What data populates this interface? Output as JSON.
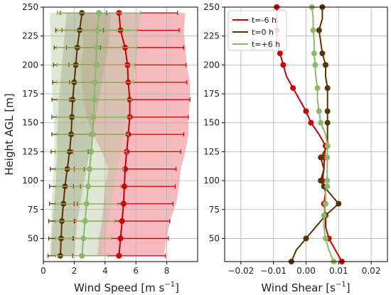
{
  "chart_data": [
    {
      "type": "line",
      "panel": "left",
      "xlabel": "Wind Speed [m s$^{-1}$]",
      "xlabel_text": "Wind Speed [m s",
      "xlabel_sup": "−1",
      "xlabel_end": "]",
      "ylabel": "Height AGL [m]",
      "xlim": [
        0,
        10
      ],
      "ylim": [
        30,
        250
      ],
      "xticks": [
        0,
        2,
        4,
        6,
        8
      ],
      "yticks": [
        50,
        75,
        100,
        125,
        150,
        175,
        200,
        225,
        250
      ],
      "grid": true,
      "heights": [
        35,
        50,
        65,
        80,
        95,
        110,
        125,
        140,
        155,
        170,
        185,
        200,
        215,
        230,
        245
      ],
      "series": [
        {
          "name": "t=-6 h",
          "color": "#cc0000",
          "values": [
            4.9,
            5.0,
            5.1,
            5.2,
            5.25,
            5.3,
            5.4,
            5.5,
            5.6,
            5.6,
            5.5,
            5.45,
            5.3,
            5.0,
            4.9
          ],
          "errors": [
            3.0,
            3.1,
            3.1,
            3.2,
            3.3,
            3.3,
            3.5,
            3.6,
            3.8,
            3.9,
            3.8,
            3.8,
            3.8,
            3.8,
            3.8
          ],
          "band_lo": [
            3.5,
            3.6,
            3.8,
            3.9,
            4.0,
            4.2,
            3.8,
            3.2,
            2.8,
            2.6,
            2.5,
            2.4,
            2.6,
            2.5,
            2.4
          ],
          "band_hi": [
            7.8,
            8.0,
            8.2,
            8.6,
            8.8,
            8.9,
            9.2,
            9.4,
            9.4,
            9.5,
            9.5,
            9.3,
            9.2,
            9.1,
            9.2
          ]
        },
        {
          "name": "t=0 h",
          "color": "#5a3300",
          "values": [
            1.1,
            1.15,
            1.2,
            1.3,
            1.4,
            1.55,
            1.7,
            1.8,
            1.85,
            1.9,
            2.0,
            2.1,
            2.2,
            2.35,
            2.5
          ],
          "errors": [
            0.8,
            0.8,
            0.85,
            0.9,
            1.0,
            1.1,
            1.2,
            1.25,
            1.3,
            1.35,
            1.4,
            1.45,
            1.5,
            1.55,
            1.6
          ],
          "band_lo": [
            0.5,
            0.55,
            0.6,
            0.7,
            0.8,
            0.85,
            0.9,
            0.9,
            0.95,
            1.0,
            1.1,
            1.2,
            1.3,
            1.4,
            1.5
          ],
          "band_hi": [
            2.0,
            2.1,
            2.2,
            2.4,
            2.6,
            2.8,
            3.0,
            3.2,
            3.4,
            3.6,
            3.8,
            4.0,
            4.2,
            4.3,
            4.4
          ]
        },
        {
          "name": "t=+6 h",
          "color": "#8cb86a",
          "values": [
            2.5,
            2.6,
            2.7,
            2.8,
            2.9,
            3.0,
            3.1,
            3.2,
            3.25,
            3.3,
            3.35,
            3.4,
            3.45,
            3.5,
            3.6
          ],
          "errors": [
            1.7,
            1.8,
            1.9,
            2.0,
            2.1,
            2.2,
            2.3,
            2.3,
            2.4,
            2.4,
            2.5,
            2.5,
            2.6,
            2.6,
            2.7
          ],
          "band_lo": [
            0.4,
            0.45,
            0.5,
            0.55,
            0.6,
            0.65,
            0.7,
            0.7,
            0.65,
            0.6,
            0.55,
            0.5,
            0.5,
            0.45,
            0.4
          ],
          "band_hi": [
            3.8,
            4.0,
            4.2,
            4.4,
            4.6,
            4.8,
            5.0,
            5.2,
            5.4,
            5.6,
            5.8,
            6.0,
            6.1,
            6.2,
            6.3
          ]
        }
      ]
    },
    {
      "type": "line",
      "panel": "right",
      "xlabel": "Wind Shear [s$^{-1}$]",
      "xlabel_text": "Wind Shear [s",
      "xlabel_sup": "−1",
      "xlabel_end": "]",
      "xlim": [
        -0.025,
        0.025
      ],
      "ylim": [
        30,
        250
      ],
      "xticks": [
        -0.02,
        -0.01,
        0.0,
        0.01,
        0.02
      ],
      "xticklabels": [
        "−0.02",
        "−0.01",
        "0.00",
        "0.01",
        "0.02"
      ],
      "yticks": [
        50,
        75,
        100,
        125,
        150,
        175,
        200,
        225,
        250
      ],
      "grid": true,
      "legend": "top-left",
      "heights": [
        30,
        40,
        50,
        60,
        70,
        80,
        90,
        95,
        100,
        110,
        120,
        130,
        140,
        150,
        160,
        170,
        180,
        190,
        200,
        210,
        220,
        230,
        240,
        250
      ],
      "series": [
        {
          "name": "t=-6 h",
          "color": "#cc0000",
          "x": [
            0.011,
            0.009,
            0.007,
            0.006,
            0.006,
            0.0055,
            0.006,
            0.0055,
            0.005,
            0.0055,
            0.0056,
            0.006,
            0.004,
            0.0015,
            0.0,
            -0.002,
            -0.004,
            -0.006,
            -0.007,
            -0.008,
            -0.009,
            -0.009,
            -0.009,
            -0.009
          ],
          "y": [
            30,
            40,
            50,
            60,
            70,
            80,
            90,
            95,
            100,
            110,
            120,
            130,
            140,
            150,
            160,
            170,
            180,
            190,
            200,
            210,
            220,
            230,
            240,
            250
          ]
        },
        {
          "name": "t=0 h",
          "color": "#5a3300",
          "x": [
            -0.0045,
            -0.003,
            0.0,
            0.003,
            0.006,
            0.01,
            0.007,
            0.0055,
            0.0045,
            0.0055,
            0.0045,
            0.0066,
            0.0066,
            0.0066,
            0.0066,
            0.0066,
            0.0066,
            0.006,
            0.006,
            0.005,
            0.0045,
            0.004,
            0.005,
            0.005
          ],
          "y": [
            30,
            40,
            50,
            60,
            70,
            80,
            90,
            95,
            100,
            110,
            120,
            130,
            140,
            150,
            160,
            170,
            180,
            190,
            200,
            210,
            220,
            230,
            240,
            250
          ]
        },
        {
          "name": "t=+6 h",
          "color": "#8cb86a",
          "x": [
            0.0085,
            0.007,
            0.006,
            0.0055,
            0.0055,
            0.006,
            0.006,
            0.0065,
            0.0065,
            0.0065,
            0.0065,
            0.0066,
            0.006,
            0.0045,
            0.004,
            0.0035,
            0.0035,
            0.003,
            0.0028,
            0.0025,
            0.0025,
            0.0022,
            0.0022,
            0.0018
          ],
          "y": [
            30,
            40,
            50,
            60,
            70,
            80,
            90,
            95,
            100,
            110,
            120,
            130,
            140,
            150,
            160,
            170,
            180,
            190,
            200,
            210,
            220,
            230,
            240,
            250
          ]
        }
      ]
    }
  ]
}
